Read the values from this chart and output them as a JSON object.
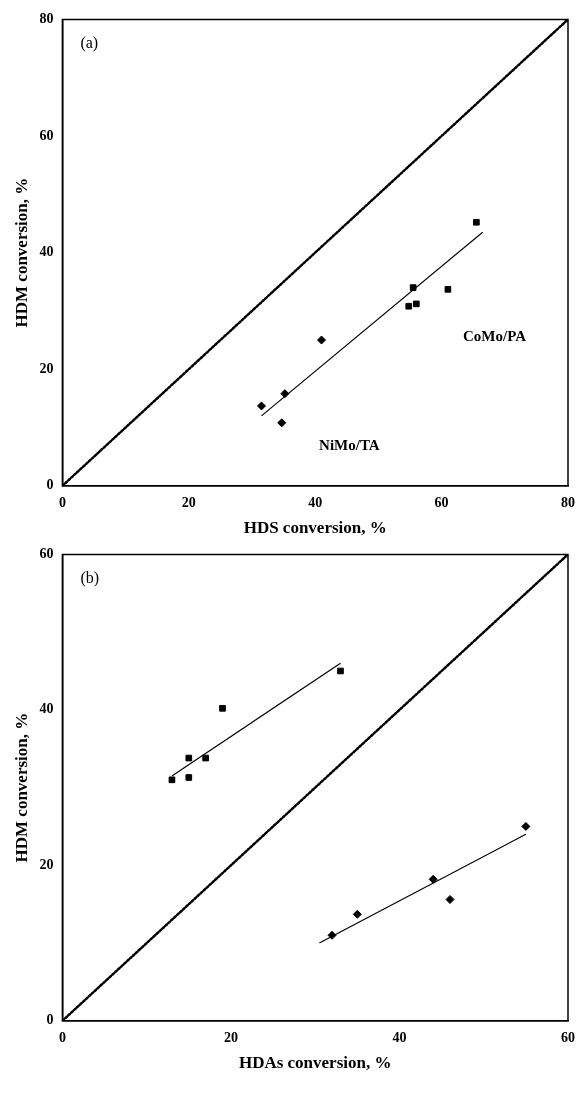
{
  "chart_data": [
    {
      "type": "scatter",
      "xlabel": "HDS conversion, %",
      "ylabel": "HDM conversion, %",
      "xlim": [
        0,
        80
      ],
      "ylim": [
        0,
        80
      ],
      "xticks": [
        0,
        20,
        40,
        60,
        80
      ],
      "yticks": [
        0,
        20,
        40,
        60,
        80
      ],
      "grid": false,
      "legend": false,
      "series": [
        {
          "type": "scatter",
          "name": "CoMo/PA",
          "marker": "square",
          "color": "#000000",
          "x": [
            55.5,
            56,
            54.8,
            61,
            65.5
          ],
          "values": [
            34,
            31.2,
            30.8,
            33.7,
            45.2
          ]
        },
        {
          "type": "scatter",
          "name": "NiMo/TA",
          "marker": "diamond",
          "color": "#000000",
          "x": [
            31.5,
            35.2,
            34.7,
            41
          ],
          "values": [
            13.7,
            15.8,
            10.8,
            25
          ]
        },
        {
          "type": "line",
          "marker": "none",
          "line_style": "solid",
          "color": "#000000",
          "x": [
            31.5,
            66.5
          ],
          "values": [
            12,
            43.5
          ]
        },
        {
          "type": "line",
          "marker": "none",
          "line_style": "dotted",
          "color": "#000000",
          "x": [
            0,
            80
          ],
          "values": [
            0,
            80
          ]
        }
      ],
      "annotations": [
        "(a)"
      ]
    },
    {
      "type": "scatter",
      "xlabel": "HDAs conversion, %",
      "ylabel": "HDM conversion, %",
      "xlim": [
        0,
        60
      ],
      "ylim": [
        0,
        60
      ],
      "xticks": [
        0,
        20,
        40,
        60
      ],
      "yticks": [
        0,
        20,
        40,
        60
      ],
      "grid": false,
      "legend": false,
      "series": [
        {
          "type": "scatter",
          "marker": "square",
          "color": "#000000",
          "x": [
            13,
            15,
            15,
            17,
            19,
            33
          ],
          "values": [
            31,
            31.3,
            33.8,
            33.8,
            40.2,
            45
          ]
        },
        {
          "type": "scatter",
          "marker": "diamond",
          "color": "#000000",
          "x": [
            32,
            35,
            44,
            46,
            55
          ],
          "values": [
            11,
            13.7,
            18.2,
            15.6,
            25
          ]
        },
        {
          "type": "line",
          "marker": "none",
          "line_style": "solid",
          "color": "#000000",
          "x": [
            13,
            33
          ],
          "values": [
            31.5,
            46
          ]
        },
        {
          "type": "line",
          "marker": "none",
          "line_style": "solid",
          "color": "#000000",
          "x": [
            30.5,
            55
          ],
          "values": [
            10,
            24
          ]
        },
        {
          "type": "line",
          "marker": "none",
          "line_style": "dotted",
          "color": "#000000",
          "x": [
            0,
            60
          ],
          "values": [
            0,
            60
          ]
        }
      ],
      "annotations": [
        "(b)"
      ]
    }
  ]
}
